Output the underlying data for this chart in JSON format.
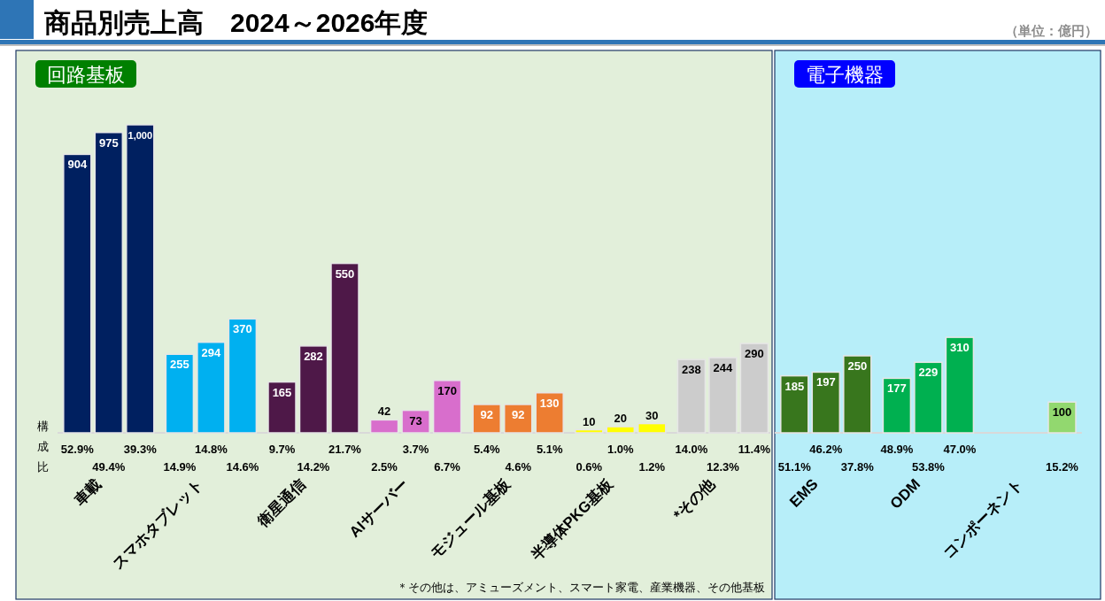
{
  "chart_data": [
    {
      "type": "bar",
      "title": "回路基板",
      "categories": [
        "車載",
        "スマホタブレット",
        "衛星通信",
        "AIサーバー",
        "モジュール基板",
        "半導体PKG基板",
        "*その他"
      ],
      "series": [
        {
          "colors": [
            "#002060",
            "#00b0f0",
            "#4e1848",
            "#d86ecc",
            "#ed7d31",
            "#ffff00",
            "#cccccc"
          ],
          "values": [
            904,
            255,
            165,
            42,
            92,
            10,
            238
          ]
        },
        {
          "colors": [
            "#002060",
            "#00b0f0",
            "#4e1848",
            "#d86ecc",
            "#ed7d31",
            "#ffff00",
            "#cccccc"
          ],
          "values": [
            975,
            294,
            282,
            73,
            92,
            20,
            244
          ]
        },
        {
          "colors": [
            "#002060",
            "#00b0f0",
            "#4e1848",
            "#d86ecc",
            "#ed7d31",
            "#ffff00",
            "#cccccc"
          ],
          "values": [
            1000,
            370,
            550,
            170,
            130,
            30,
            290
          ],
          "value_labels": [
            "1,000",
            "370",
            "550",
            "170",
            "130",
            "30",
            "290"
          ]
        }
      ],
      "data_labels": true,
      "annotations": [
        "52.9%",
        "49.4%",
        "39.3%",
        "14.9%",
        "14.8%",
        "14.6%",
        "9.7%",
        "14.2%",
        "21.7%",
        "2.5%",
        "3.7%",
        "6.7%",
        "5.4%",
        "4.6%",
        "5.1%",
        "0.6%",
        "1.0%",
        "1.2%",
        "14.0%",
        "12.3%",
        "11.4%",
        "商品別売上高　2024～2026年度",
        "（単位：億円）",
        "構成比",
        "＊その他は、アミューズメント、スマート家電、産業機器、その他基板"
      ]
    },
    {
      "type": "bar",
      "title": "電子機器",
      "categories": [
        "EMS",
        "ODM",
        "コンポーネント"
      ],
      "series": [
        {
          "colors": [
            "#38761d",
            "#00b050",
            null
          ],
          "values": [
            185,
            177,
            null
          ]
        },
        {
          "colors": [
            "#38761d",
            "#00b050",
            null
          ],
          "values": [
            197,
            229,
            null
          ]
        },
        {
          "colors": [
            "#38761d",
            "#00b050",
            "#92d86f"
          ],
          "values": [
            250,
            310,
            100
          ]
        }
      ],
      "data_labels": true,
      "annotations": [
        "51.1%",
        "46.2%",
        "37.8%",
        "48.9%",
        "53.8%",
        "47.0%",
        "15.2%"
      ]
    }
  ]
}
